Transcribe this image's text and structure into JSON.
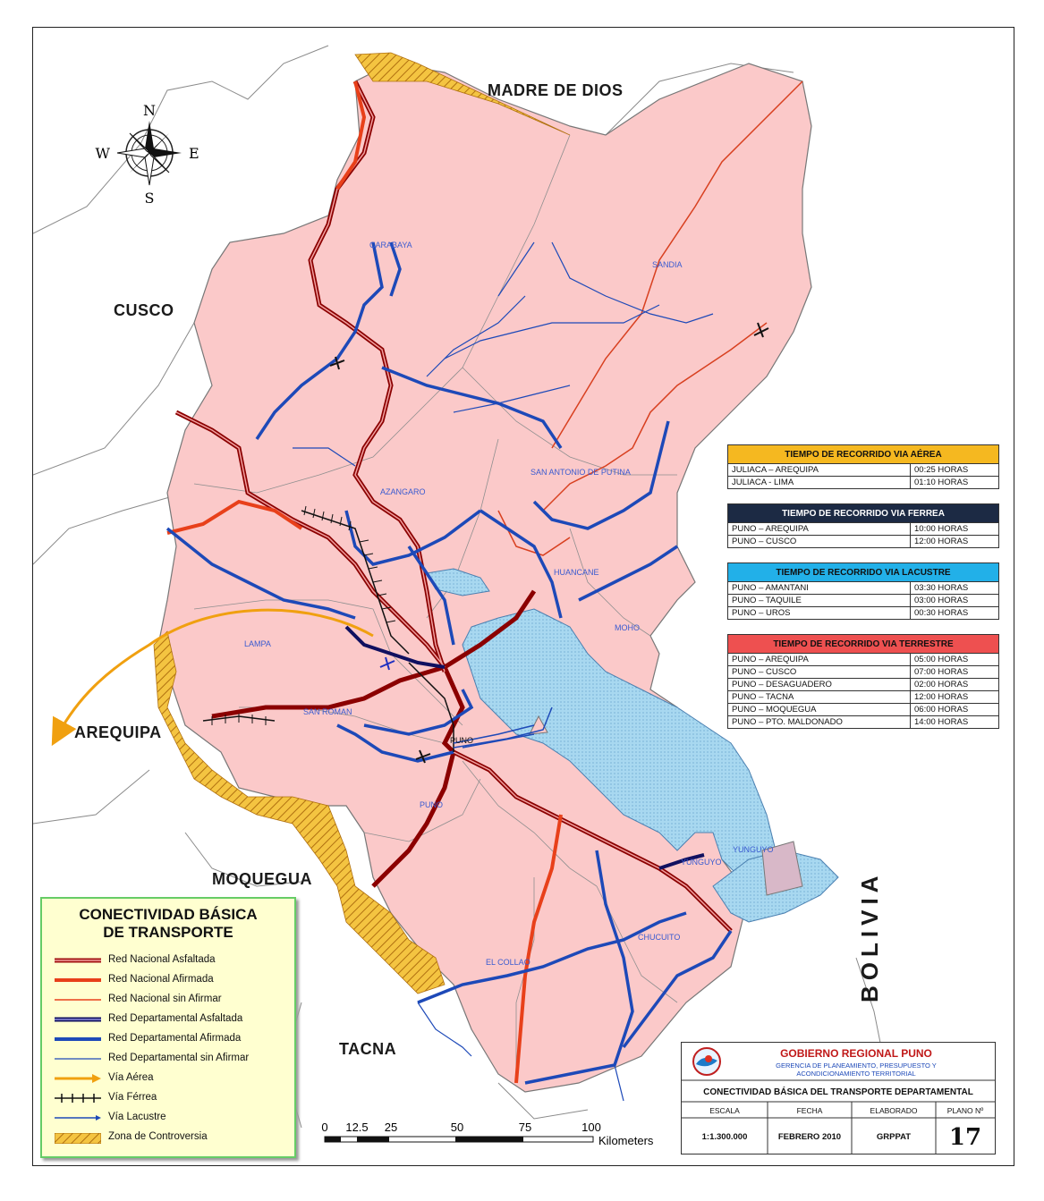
{
  "neighbors": {
    "madre_de_dios": "MADRE DE DIOS",
    "cusco": "CUSCO",
    "arequipa": "AREQUIPA",
    "moquegua": "MOQUEGUA",
    "tacna": "TACNA",
    "bolivia": "BOLIVIA"
  },
  "compass": {
    "n": "N",
    "s": "S",
    "e": "E",
    "w": "W"
  },
  "provinces": {
    "carabaya": "CARABAYA",
    "sandia": "SANDIA",
    "san_antonio": "SAN ANTONIO DE PUTINA",
    "azangaro": "AZANGARO",
    "huancane": "HUANCANE",
    "moho": "MOHO",
    "lampa": "LAMPA",
    "san_roman": "SAN ROMAN",
    "puno_city": "PUNO",
    "puno": "PUNO",
    "yunguyo": "YUNGUYO",
    "yunguyo2": "YUNGUYO",
    "chucuito": "CHUCUITO",
    "el_collao": "EL COLLAO"
  },
  "tables": {
    "aerea": {
      "title": "TIEMPO DE RECORRIDO VIA AÉREA",
      "color": "#f5b820",
      "rows": [
        {
          "route": "JULIACA – AREQUIPA",
          "time": "00:25 HORAS"
        },
        {
          "route": "JULIACA - LIMA",
          "time": "01:10 HORAS"
        }
      ]
    },
    "ferrea": {
      "title": "TIEMPO DE RECORRIDO VIA FERREA",
      "color": "#1c2a44",
      "rows": [
        {
          "route": "PUNO – AREQUIPA",
          "time": "10:00 HORAS"
        },
        {
          "route": "PUNO – CUSCO",
          "time": "12:00 HORAS"
        }
      ]
    },
    "lacustre": {
      "title": "TIEMPO DE RECORRIDO VIA LACUSTRE",
      "color": "#22b0e8",
      "rows": [
        {
          "route": "PUNO – AMANTANI",
          "time": "03:30 HORAS"
        },
        {
          "route": "PUNO – TAQUILE",
          "time": "03:00 HORAS"
        },
        {
          "route": "PUNO – UROS",
          "time": "00:30 HORAS"
        }
      ]
    },
    "terrestre": {
      "title": "TIEMPO DE RECORRIDO VIA TERRESTRE",
      "color": "#ee5050",
      "rows": [
        {
          "route": "PUNO – AREQUIPA",
          "time": "05:00 HORAS"
        },
        {
          "route": "PUNO – CUSCO",
          "time": "07:00 HORAS"
        },
        {
          "route": "PUNO – DESAGUADERO",
          "time": "02:00 HORAS"
        },
        {
          "route": "PUNO – TACNA",
          "time": "12:00 HORAS"
        },
        {
          "route": "PUNO – MOQUEGUA",
          "time": "06:00 HORAS"
        },
        {
          "route": "PUNO – PTO. MALDONADO",
          "time": "14:00 HORAS"
        }
      ]
    }
  },
  "legend": {
    "title_line1": "CONECTIVIDAD BÁSICA",
    "title_line2": "DE TRANSPORTE",
    "items": [
      {
        "label": "Red Nacional Asfaltada",
        "color": "#a01010"
      },
      {
        "label": "Red Nacional Afirmada",
        "color": "#e8401a"
      },
      {
        "label": "Red Nacional sin Afirmar",
        "color": "#e8401a"
      },
      {
        "label": "Red Departamental Asfaltada",
        "color": "#101060"
      },
      {
        "label": "Red Departamental Afirmada",
        "color": "#1d49b8"
      },
      {
        "label": "Red Departamental sin Afirmar",
        "color": "#1d49b8"
      },
      {
        "label": "Vía Aérea",
        "color": "#f0a010"
      },
      {
        "label": "Vía Férrea",
        "color": "#111111"
      },
      {
        "label": "Vía Lacustre",
        "color": "#1d49b8"
      },
      {
        "label": "Zona de Controversia",
        "color": "#f0a010"
      }
    ]
  },
  "scale": {
    "ticks": [
      "0",
      "12.5",
      "25",
      "50",
      "75",
      "100"
    ],
    "unit": "Kilometers"
  },
  "title_block": {
    "org": "GOBIERNO REGIONAL PUNO",
    "dept_line1": "GERENCIA DE PLANEAMIENTO, PRESUPUESTO Y",
    "dept_line2": "ACONDICIONAMIENTO TERRITORIAL",
    "map_title": "CONECTIVIDAD BÁSICA DEL TRANSPORTE DEPARTAMENTAL",
    "headers": {
      "escala": "ESCALA",
      "fecha": "FECHA",
      "elaborado": "ELABORADO",
      "plano": "PLANO Nº"
    },
    "values": {
      "escala": "1:1.300.000",
      "fecha": "FEBRERO 2010",
      "elaborado": "GRPPAT",
      "plano": "17"
    }
  }
}
